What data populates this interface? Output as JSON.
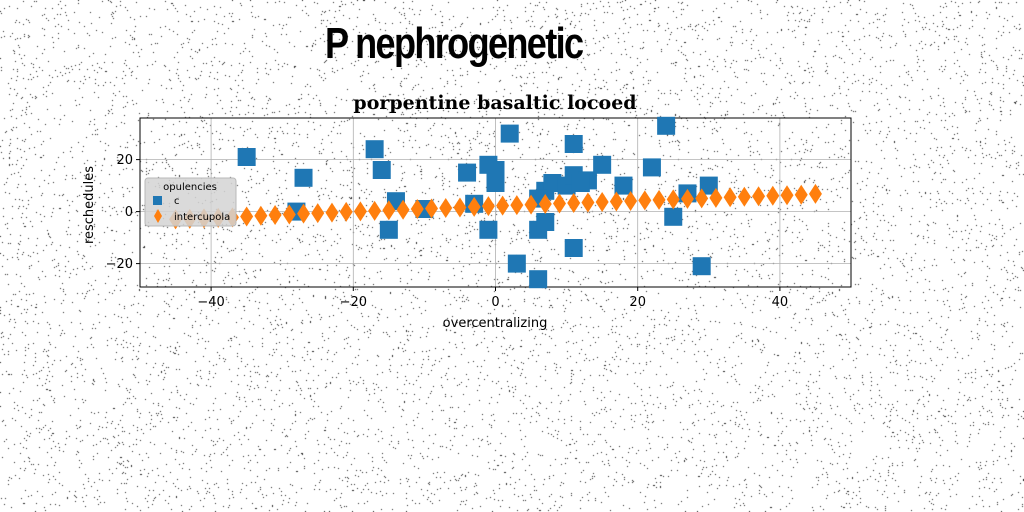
{
  "header": {
    "title": "P nephrogenetic"
  },
  "colors": {
    "series_a": "#1f77b4",
    "series_b": "#ff7f0e",
    "grid": "#b0b0b0",
    "legend_bg": "#d3d3d3"
  },
  "chart_data": {
    "type": "scatter",
    "title": "porpentine basaltic locoed",
    "xlabel": "overcentralizing",
    "ylabel": "reschedules",
    "xlim": [
      -50,
      50
    ],
    "ylim": [
      -29,
      36
    ],
    "xticks": [
      -40,
      -20,
      0,
      20,
      40
    ],
    "yticks": [
      -20,
      0,
      20
    ],
    "grid": true,
    "legend": {
      "title": "opulencies",
      "placement": "center-left"
    },
    "series": [
      {
        "name": "c",
        "marker": "square",
        "x": [
          -35,
          -27,
          -28,
          -17,
          -16,
          -14,
          -15,
          -10,
          -4,
          -3,
          -1,
          0,
          0,
          -1,
          2,
          3,
          6,
          7,
          6,
          8,
          7,
          11,
          10,
          11,
          13,
          12,
          15,
          18,
          22,
          24,
          25,
          27,
          29,
          30,
          11,
          6
        ],
        "y": [
          21,
          13,
          0,
          24,
          16,
          4,
          -7,
          1,
          15,
          3,
          18,
          16,
          11,
          -7,
          30,
          -20,
          -26,
          8,
          -7,
          11,
          -4,
          26,
          10,
          14,
          12,
          11,
          18,
          10,
          17,
          33,
          -2,
          7,
          -21,
          10,
          -14,
          5
        ]
      },
      {
        "name": "intercupola",
        "marker": "diamond",
        "x": [
          -45,
          -43,
          -41,
          -39,
          -37,
          -35,
          -33,
          -31,
          -29,
          -27,
          -25,
          -23,
          -21,
          -19,
          -17,
          -15,
          -13,
          -11,
          -9,
          -7,
          -5,
          -3,
          -1,
          1,
          3,
          5,
          7,
          9,
          11,
          13,
          15,
          17,
          19,
          21,
          23,
          25,
          27,
          29,
          31,
          33,
          35,
          37,
          39,
          41,
          43,
          45
        ],
        "y": [
          -3,
          -2.8,
          -2.6,
          -2.4,
          -2.2,
          -1.9,
          -1.6,
          -1.3,
          -1.1,
          -0.8,
          -0.6,
          -0.4,
          -0.1,
          0.1,
          0.3,
          0.5,
          0.7,
          1,
          1.2,
          1.4,
          1.6,
          1.8,
          2.1,
          2.3,
          2.5,
          2.7,
          2.9,
          3.1,
          3.3,
          3.5,
          3.7,
          3.9,
          4.1,
          4.3,
          4.5,
          4.7,
          4.9,
          5.1,
          5.3,
          5.5,
          5.7,
          5.9,
          6.1,
          6.3,
          6.5,
          6.8
        ]
      }
    ]
  }
}
